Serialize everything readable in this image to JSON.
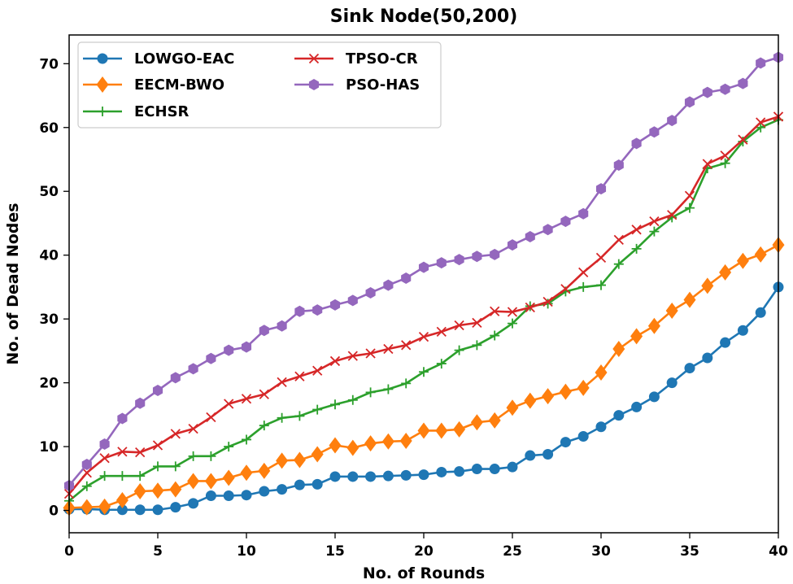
{
  "chart_data": {
    "type": "line",
    "title": "Sink Node(50,200)",
    "xlabel": "No. of Rounds",
    "ylabel": "No. of Dead Nodes",
    "xlim": [
      0,
      40
    ],
    "ylim": [
      -3.5,
      74.5
    ],
    "xticks": [
      0,
      5,
      10,
      15,
      20,
      25,
      30,
      35,
      40
    ],
    "yticks": [
      0,
      10,
      20,
      30,
      40,
      50,
      60,
      70
    ],
    "legend_location": "top-left",
    "x": [
      0,
      1,
      2,
      3,
      4,
      5,
      6,
      7,
      8,
      9,
      10,
      11,
      12,
      13,
      14,
      15,
      16,
      17,
      18,
      19,
      20,
      21,
      22,
      23,
      24,
      25,
      26,
      27,
      28,
      29,
      30,
      31,
      32,
      33,
      34,
      35,
      36,
      37,
      38,
      39,
      40
    ],
    "series": [
      {
        "name": "LOWGO-EAC",
        "color": "#1f77b4",
        "marker": "circle",
        "values": [
          0.2,
          0.2,
          0.1,
          0.1,
          0.1,
          0.1,
          0.5,
          1.1,
          2.3,
          2.3,
          2.4,
          3.0,
          3.3,
          4.0,
          4.1,
          5.3,
          5.3,
          5.3,
          5.4,
          5.5,
          5.6,
          6.0,
          6.1,
          6.5,
          6.5,
          6.8,
          8.6,
          8.8,
          10.7,
          11.6,
          13.1,
          14.9,
          16.2,
          17.8,
          20.0,
          22.3,
          23.9,
          26.3,
          28.2,
          31.0,
          35.0
        ]
      },
      {
        "name": "EECM-BWO",
        "color": "#ff7f0e",
        "marker": "diamond",
        "values": [
          0.4,
          0.5,
          0.6,
          1.6,
          3.0,
          3.1,
          3.3,
          4.6,
          4.6,
          5.1,
          5.9,
          6.2,
          7.8,
          7.9,
          8.8,
          10.2,
          9.8,
          10.5,
          10.8,
          10.9,
          12.5,
          12.5,
          12.7,
          13.8,
          14.1,
          16.1,
          17.2,
          17.9,
          18.6,
          19.2,
          21.6,
          25.3,
          27.3,
          28.9,
          31.3,
          33.0,
          35.2,
          37.3,
          39.1,
          40.1,
          41.6
        ]
      },
      {
        "name": "ECHSR",
        "color": "#2ca02c",
        "marker": "plus",
        "values": [
          1.5,
          3.8,
          5.4,
          5.4,
          5.4,
          6.9,
          6.9,
          8.5,
          8.5,
          10.0,
          11.1,
          13.3,
          14.5,
          14.8,
          15.8,
          16.6,
          17.3,
          18.5,
          19.0,
          19.9,
          21.7,
          23.0,
          25.1,
          25.9,
          27.4,
          29.3,
          32.0,
          32.4,
          34.3,
          35.0,
          35.3,
          38.6,
          41.0,
          43.7,
          45.9,
          47.4,
          53.6,
          54.4,
          57.8,
          60.0,
          61.2
        ]
      },
      {
        "name": "TPSO-CR",
        "color": "#d62728",
        "marker": "x",
        "values": [
          2.6,
          5.9,
          8.2,
          9.2,
          9.1,
          10.2,
          12.0,
          12.8,
          14.6,
          16.7,
          17.5,
          18.2,
          20.1,
          21.0,
          21.9,
          23.4,
          24.2,
          24.6,
          25.3,
          25.9,
          27.2,
          28.0,
          29.0,
          29.4,
          31.2,
          31.1,
          31.8,
          32.7,
          34.7,
          37.3,
          39.6,
          42.4,
          44.0,
          45.3,
          46.3,
          49.3,
          54.3,
          55.6,
          58.1,
          60.8,
          61.7
        ]
      },
      {
        "name": "PSO-HAS",
        "color": "#9467bd",
        "marker": "hexagon",
        "values": [
          3.9,
          7.2,
          10.4,
          14.4,
          16.8,
          18.8,
          20.8,
          22.2,
          23.8,
          25.1,
          25.6,
          28.2,
          28.9,
          31.2,
          31.4,
          32.2,
          32.9,
          34.1,
          35.3,
          36.4,
          38.1,
          38.8,
          39.3,
          39.8,
          40.1,
          41.6,
          42.9,
          44.0,
          45.3,
          46.5,
          50.4,
          54.1,
          57.5,
          59.3,
          61.1,
          64.0,
          65.5,
          66.0,
          66.9,
          70.1,
          71.0
        ]
      }
    ]
  }
}
